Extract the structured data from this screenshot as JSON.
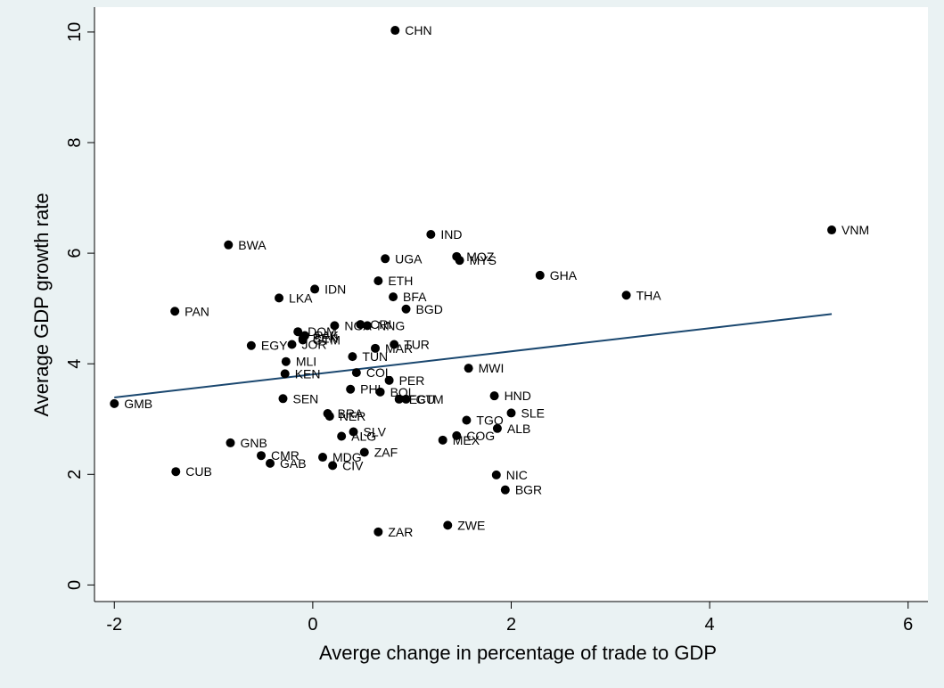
{
  "chart_data": {
    "type": "scatter",
    "title": "",
    "xlabel": "Averge change in percentage of trade to GDP",
    "ylabel": "Average GDP growth rate",
    "xlim": [
      -2.2,
      6.2
    ],
    "ylim": [
      -0.3,
      10.45
    ],
    "xticks": [
      "-2",
      "0",
      "2",
      "4",
      "6"
    ],
    "yticks": [
      "0",
      "2",
      "4",
      "6",
      "8",
      "10"
    ],
    "grid": false,
    "legend": "none",
    "colors": {
      "points": "#000000",
      "fit_line": "#1a476f",
      "background": "#eaf2f3",
      "plot": "#ffffff"
    },
    "fit_line": {
      "x": [
        -2.0,
        5.23
      ],
      "y": [
        3.39,
        4.9
      ]
    },
    "points": [
      {
        "label": "CHN",
        "x": 0.83,
        "y": 10.03
      },
      {
        "label": "VNM",
        "x": 5.23,
        "y": 6.42
      },
      {
        "label": "IND",
        "x": 1.19,
        "y": 6.34
      },
      {
        "label": "BWA",
        "x": -0.85,
        "y": 6.15
      },
      {
        "label": "UGA",
        "x": 0.73,
        "y": 5.9
      },
      {
        "label": "MOZ",
        "x": 1.45,
        "y": 5.94
      },
      {
        "label": "MYS",
        "x": 1.48,
        "y": 5.87
      },
      {
        "label": "GHA",
        "x": 2.29,
        "y": 5.6
      },
      {
        "label": "ETH",
        "x": 0.66,
        "y": 5.5
      },
      {
        "label": "IDN",
        "x": 0.02,
        "y": 5.35
      },
      {
        "label": "THA",
        "x": 3.16,
        "y": 5.24
      },
      {
        "label": "BFA",
        "x": 0.81,
        "y": 5.21
      },
      {
        "label": "LKA",
        "x": -0.34,
        "y": 5.19
      },
      {
        "label": "BGD",
        "x": 0.94,
        "y": 4.99
      },
      {
        "label": "PAN",
        "x": -1.39,
        "y": 4.95
      },
      {
        "label": "NGA",
        "x": 0.22,
        "y": 4.69
      },
      {
        "label": "CRI",
        "x": 0.48,
        "y": 4.71
      },
      {
        "label": "NNG",
        "x": 0.55,
        "y": 4.69
      },
      {
        "label": "DOM",
        "x": -0.15,
        "y": 4.58
      },
      {
        "label": "PAK",
        "x": -0.08,
        "y": 4.51
      },
      {
        "label": "BEN",
        "x": -0.1,
        "y": 4.46
      },
      {
        "label": "GTM",
        "x": -0.1,
        "y": 4.43
      },
      {
        "label": "EGY",
        "x": -0.62,
        "y": 4.33
      },
      {
        "label": "JOR",
        "x": -0.21,
        "y": 4.35
      },
      {
        "label": "TUR",
        "x": 0.82,
        "y": 4.35
      },
      {
        "label": "MAR",
        "x": 0.63,
        "y": 4.28
      },
      {
        "label": "TUN",
        "x": 0.4,
        "y": 4.13
      },
      {
        "label": "MLI",
        "x": -0.27,
        "y": 4.04
      },
      {
        "label": "MWI",
        "x": 1.57,
        "y": 3.92
      },
      {
        "label": "COL",
        "x": 0.44,
        "y": 3.84
      },
      {
        "label": "KEN",
        "x": -0.28,
        "y": 3.82
      },
      {
        "label": "PER",
        "x": 0.77,
        "y": 3.7
      },
      {
        "label": "PHL",
        "x": 0.38,
        "y": 3.54
      },
      {
        "label": "BOL",
        "x": 0.68,
        "y": 3.49
      },
      {
        "label": "HND",
        "x": 1.83,
        "y": 3.42
      },
      {
        "label": "SEN",
        "x": -0.3,
        "y": 3.37
      },
      {
        "label": "ECU",
        "x": 0.87,
        "y": 3.36
      },
      {
        "label": "GTM",
        "x": 0.94,
        "y": 3.36
      },
      {
        "label": "GMB",
        "x": -2.0,
        "y": 3.28
      },
      {
        "label": "SLE",
        "x": 2.0,
        "y": 3.11
      },
      {
        "label": "BRA",
        "x": 0.15,
        "y": 3.1
      },
      {
        "label": "NER",
        "x": 0.17,
        "y": 3.05
      },
      {
        "label": "TGO",
        "x": 1.55,
        "y": 2.98
      },
      {
        "label": "ALB",
        "x": 1.86,
        "y": 2.83
      },
      {
        "label": "SLV",
        "x": 0.41,
        "y": 2.77
      },
      {
        "label": "ALG",
        "x": 0.29,
        "y": 2.69
      },
      {
        "label": "COG",
        "x": 1.45,
        "y": 2.7
      },
      {
        "label": "MEX",
        "x": 1.31,
        "y": 2.62
      },
      {
        "label": "GNB",
        "x": -0.83,
        "y": 2.57
      },
      {
        "label": "ZAF",
        "x": 0.52,
        "y": 2.4
      },
      {
        "label": "CMR",
        "x": -0.52,
        "y": 2.34
      },
      {
        "label": "MDG",
        "x": 0.1,
        "y": 2.31
      },
      {
        "label": "GAB",
        "x": -0.43,
        "y": 2.2
      },
      {
        "label": "CIV",
        "x": 0.2,
        "y": 2.16
      },
      {
        "label": "CUB",
        "x": -1.38,
        "y": 2.05
      },
      {
        "label": "NIC",
        "x": 1.85,
        "y": 1.99
      },
      {
        "label": "BGR",
        "x": 1.94,
        "y": 1.72
      },
      {
        "label": "ZWE",
        "x": 1.36,
        "y": 1.08
      },
      {
        "label": "ZAR",
        "x": 0.66,
        "y": 0.96
      }
    ]
  }
}
